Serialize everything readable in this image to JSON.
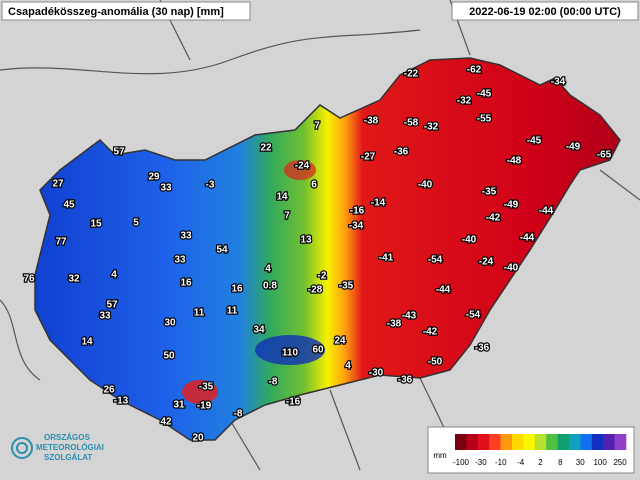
{
  "header": {
    "title": "Csapadékösszeg-anomália (30 nap) [mm]",
    "timestamp": "2022-06-19 02:00 (00:00 UTC)"
  },
  "stations": [
    -62,
    -22,
    -34,
    -45,
    -32,
    -38,
    -58,
    -32,
    -55,
    7,
    57,
    22,
    -45,
    -49,
    -65,
    -27,
    -36,
    -24,
    -48,
    27,
    29,
    33,
    -3,
    6,
    -40,
    -35,
    45,
    14,
    -14,
    -16,
    -49,
    -44,
    15,
    5,
    7,
    -34,
    -42,
    77,
    33,
    54,
    13,
    -40,
    -44,
    76,
    32,
    4,
    33,
    4,
    -41,
    -54,
    -24,
    -40,
    16,
    0.8,
    16,
    -2,
    -28,
    -35,
    -44,
    57,
    33,
    11,
    11,
    -43,
    -54,
    30,
    -38,
    -42,
    14,
    34,
    24,
    110,
    60,
    -36,
    50,
    -50,
    4,
    -30,
    -36,
    -35,
    -8,
    26,
    -13,
    31,
    -19,
    -16,
    -8,
    42,
    20
  ],
  "legend": {
    "unit": "mm",
    "colors": [
      "#7a0010",
      "#b8001a",
      "#e0101a",
      "#ff4020",
      "#ff9a10",
      "#ffd800",
      "#f8f800",
      "#b8e030",
      "#50c040",
      "#10a070",
      "#10a0c0",
      "#1070f0",
      "#1030c0",
      "#5020b0",
      "#9040c8"
    ],
    "ticks": [
      -100,
      -30,
      -10,
      -4,
      2,
      8,
      30,
      100,
      250
    ]
  },
  "logo": {
    "lines": [
      "ORSZÁGOS",
      "METEOROLÓGIAI",
      "SZOLGÁLAT"
    ]
  }
}
